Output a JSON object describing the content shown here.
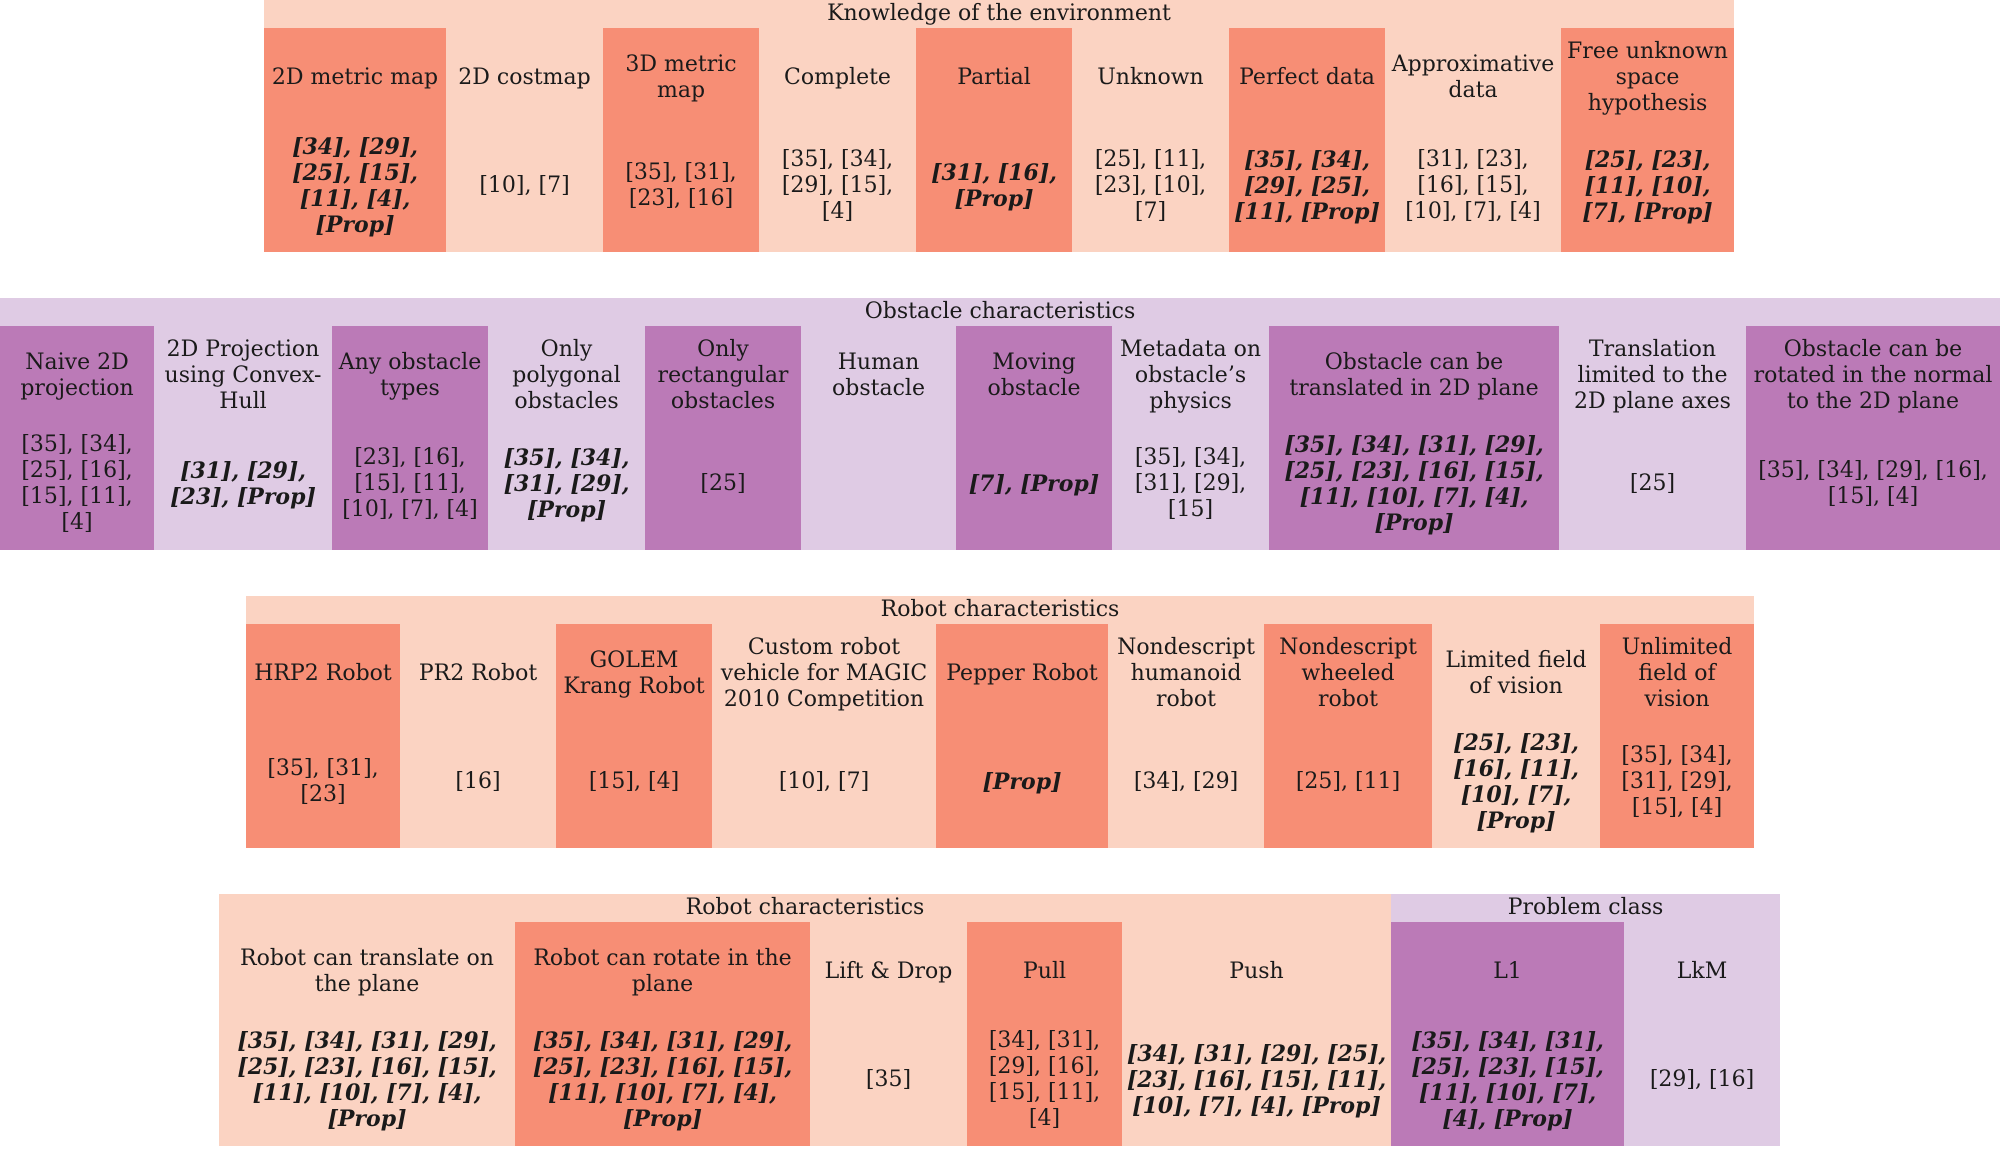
{
  "colors": {
    "orange_dark": "#F78E75",
    "orange_light": "#FBD3C2",
    "purple_dark": "#BB7AB7",
    "purple_light": "#DFCBE4"
  },
  "sections": [
    {
      "header": "Knowledge of the environment",
      "columns": [
        {
          "title": "2D metric map",
          "refs": "[34], [29], [25], [15], [11], [4], [Prop]",
          "bold": true
        },
        {
          "title": "2D costmap",
          "refs": "[10], [7]",
          "bold": false
        },
        {
          "title": "3D metric map",
          "refs": "[35], [31], [23], [16]",
          "bold": false
        },
        {
          "title": "Complete",
          "refs": "[35], [34], [29], [15], [4]",
          "bold": false
        },
        {
          "title": "Partial",
          "refs": "[31], [16], [Prop]",
          "bold": true
        },
        {
          "title": "Unknown",
          "refs": "[25], [11], [23], [10], [7]",
          "bold": false
        },
        {
          "title": "Perfect data",
          "refs": "[35], [34], [29], [25], [11], [Prop]",
          "bold": true
        },
        {
          "title": "Approximative data",
          "refs": "[31], [23], [16], [15], [10], [7], [4]",
          "bold": false
        },
        {
          "title": "Free unknown space hypothesis",
          "refs": "[25], [23], [11], [10], [7], [Prop]",
          "bold": true
        }
      ]
    },
    {
      "header": "Obstacle characteristics",
      "columns": [
        {
          "title": "Naive 2D projection",
          "refs": "[35], [34], [25], [16], [15], [11], [4]",
          "bold": false
        },
        {
          "title": "2D Projection using Convex-Hull",
          "refs": "[31], [29], [23], [Prop]",
          "bold": true
        },
        {
          "title": "Any obstacle types",
          "refs": "[23], [16], [15], [11], [10], [7], [4]",
          "bold": false
        },
        {
          "title": "Only polygonal obstacles",
          "refs": "[35], [34], [31], [29], [Prop]",
          "bold": true
        },
        {
          "title": "Only rectangular obstacles",
          "refs": "[25]",
          "bold": false
        },
        {
          "title": "Human obstacle",
          "refs": "",
          "bold": false
        },
        {
          "title": "Moving obstacle",
          "refs": "[7], [Prop]",
          "bold": true
        },
        {
          "title": "Metadata on obstacle’s physics",
          "refs": "[35], [34], [31], [29], [15]",
          "bold": false
        },
        {
          "title": "Obstacle can be translated in 2D plane",
          "refs": "[35], [34], [31], [29], [25], [23], [16], [15], [11], [10], [7], [4], [Prop]",
          "bold": true
        },
        {
          "title": "Translation limited to the 2D plane axes",
          "refs": "[25]",
          "bold": false
        },
        {
          "title": "Obstacle can be rotated in the normal to the 2D plane",
          "refs": "[35], [34], [29], [16], [15], [4]",
          "bold": false
        }
      ]
    },
    {
      "header": "Robot characteristics",
      "columns": [
        {
          "title": "HRP2 Robot",
          "refs": "[35], [31], [23]",
          "bold": false
        },
        {
          "title": "PR2 Robot",
          "refs": "[16]",
          "bold": false
        },
        {
          "title": "GOLEM Krang Robot",
          "refs": "[15], [4]",
          "bold": false
        },
        {
          "title": "Custom robot vehicle for MAGIC 2010 Competition",
          "refs": "[10], [7]",
          "bold": false
        },
        {
          "title": "Pepper Robot",
          "refs": "[Prop]",
          "bold": true
        },
        {
          "title": "Nondescript humanoid robot",
          "refs": "[34], [29]",
          "bold": false
        },
        {
          "title": "Nondescript wheeled robot",
          "refs": "[25], [11]",
          "bold": false
        },
        {
          "title": "Limited field of vision",
          "refs": "[25], [23], [16], [11], [10], [7], [Prop]",
          "bold": true
        },
        {
          "title": "Unlimited field of vision",
          "refs": "[35], [34], [31], [29], [15], [4]",
          "bold": false
        }
      ]
    },
    {
      "headers": [
        "Robot characteristics",
        "Problem class"
      ],
      "columns": [
        {
          "title": "Robot can translate on the plane",
          "refs": "[35], [34], [31], [29], [25], [23], [16], [15], [11], [10], [7], [4], [Prop]",
          "bold": true
        },
        {
          "title": "Robot can rotate in the plane",
          "refs": "[35], [34], [31], [29], [25], [23], [16], [15], [11], [10], [7], [4], [Prop]",
          "bold": true
        },
        {
          "title": "Lift & Drop",
          "refs": "[35]",
          "bold": false
        },
        {
          "title": "Pull",
          "refs": "[34], [31], [29], [16], [15], [11], [4]",
          "bold": false
        },
        {
          "title": "Push",
          "refs": "[34], [31], [29], [25], [23], [16], [15], [11], [10], [7], [4], [Prop]",
          "bold": true
        },
        {
          "title": "L1",
          "refs": "[35], [34], [31], [25], [23], [15], [11], [10], [7], [4], [Prop]",
          "bold": true
        },
        {
          "title": "LkM",
          "refs": "[29], [16]",
          "bold": false
        }
      ]
    }
  ]
}
